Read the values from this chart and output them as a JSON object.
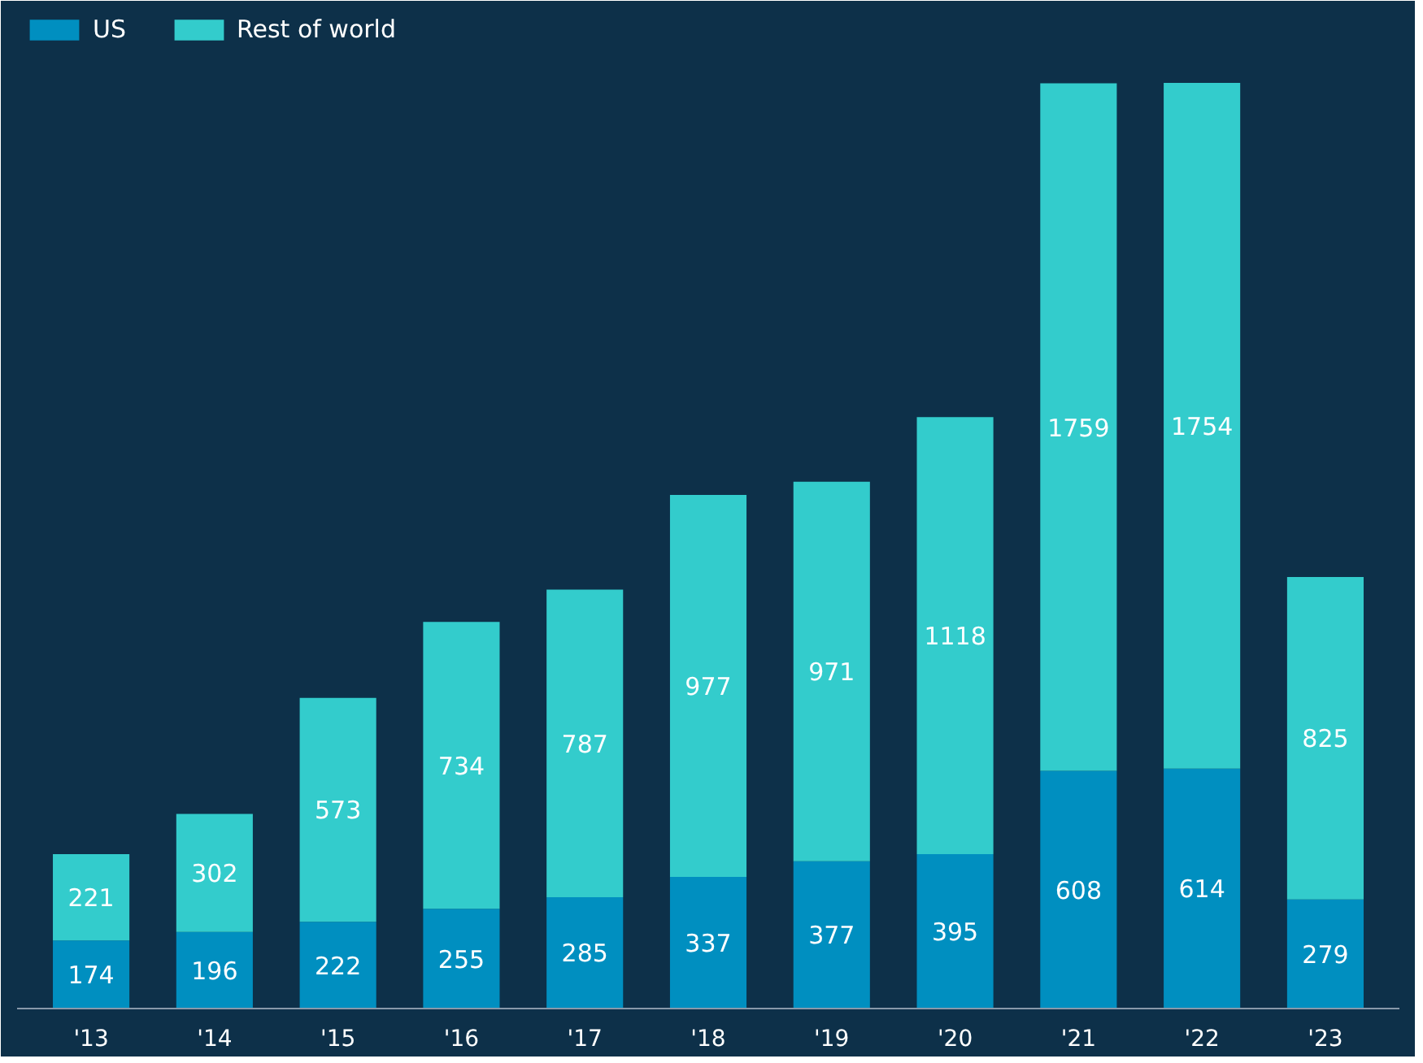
{
  "chart_data": {
    "type": "bar",
    "stacked": true,
    "data_labels": true,
    "legend": "top left",
    "grid": false,
    "categories": [
      "'13",
      "'14",
      "'15",
      "'16",
      "'17",
      "'18",
      "'19",
      "'20",
      "'21",
      "'22",
      "'23"
    ],
    "series": [
      {
        "name": "US",
        "color": "#008fc0",
        "values": [
          174,
          196,
          222,
          255,
          285,
          337,
          377,
          395,
          608,
          614,
          279
        ]
      },
      {
        "name": "Rest of world",
        "color": "#33cccc",
        "values": [
          221,
          302,
          573,
          734,
          787,
          977,
          971,
          1118,
          1759,
          1754,
          825
        ]
      }
    ]
  }
}
